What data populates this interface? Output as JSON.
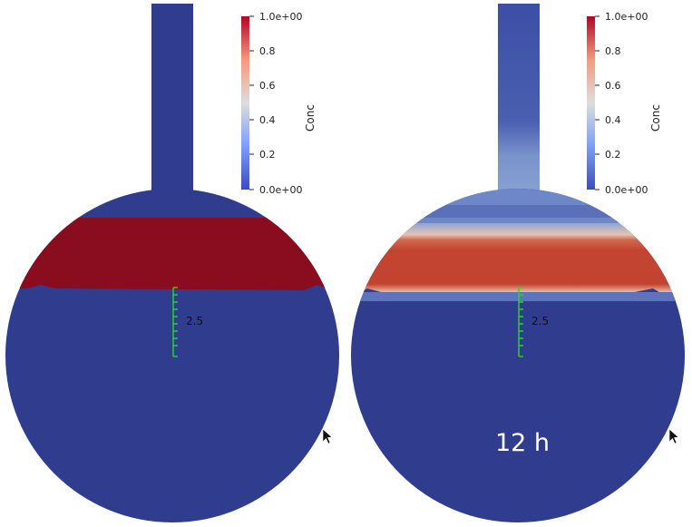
{
  "colorbar": {
    "title": "Conc",
    "ticks": [
      "1.0e+00",
      "0.8",
      "0.6",
      "0.4",
      "0.2",
      "0.0e+00"
    ],
    "colors": {
      "low": "#3b4cc0",
      "mid": "#dddddd",
      "high": "#b40426"
    }
  },
  "left_panel": {
    "scale_label": "2.5",
    "fluid_color": "#303d8f",
    "band_color": "#8a0d1f"
  },
  "right_panel": {
    "scale_label": "2.5",
    "time_label": "12 h",
    "fluid_color": "#303d8f",
    "band_color": "#c0422f",
    "band_edge_color": "#dca086",
    "diffuse_color": "#6d87c8"
  },
  "scale_bar_color": "#22dd22",
  "icons": [
    "cursor-arrow-icon",
    "cursor-arrow-icon"
  ]
}
